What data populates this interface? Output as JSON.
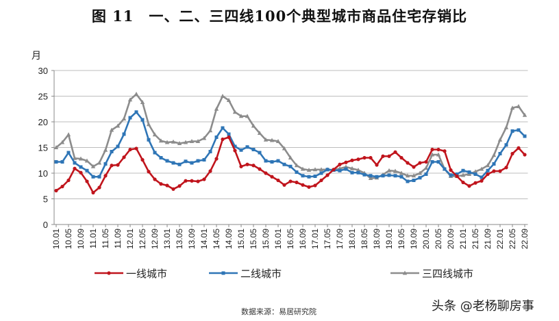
{
  "title": "图 11　一、二、三四线100个典型城市商品住宅存销比",
  "source": "数据来源：易居研究院",
  "watermark": "头条 @老杨聊房事",
  "chart_data": {
    "type": "line",
    "title": "图 11　一、二、三四线100个典型城市商品住宅存销比",
    "ylabel": "月",
    "ylim": [
      0,
      30
    ],
    "yticks": [
      0,
      5,
      10,
      15,
      20,
      25,
      30
    ],
    "grid": "horizontal",
    "legend": "bottom",
    "xtick_labels": [
      "10.01",
      "10.05",
      "10.09",
      "11.01",
      "11.05",
      "11.09",
      "12.01",
      "12.05",
      "12.09",
      "13.01",
      "13.05",
      "13.09",
      "14.01",
      "14.05",
      "14.09",
      "15.01",
      "15.05",
      "15.09",
      "16.01",
      "16.05",
      "16.09",
      "17.01",
      "17.05",
      "17.09",
      "18.01",
      "18.05",
      "18.09",
      "19.01",
      "19.05",
      "19.09",
      "20.01",
      "20.05",
      "20.09",
      "21.01",
      "21.05",
      "21.09",
      "22.01",
      "22.05",
      "22.09"
    ],
    "x": [
      "10.01",
      "10.03",
      "10.05",
      "10.07",
      "10.09",
      "10.11",
      "11.01",
      "11.03",
      "11.05",
      "11.07",
      "11.09",
      "11.11",
      "12.01",
      "12.03",
      "12.05",
      "12.07",
      "12.09",
      "12.11",
      "13.01",
      "13.03",
      "13.05",
      "13.07",
      "13.09",
      "13.11",
      "14.01",
      "14.03",
      "14.05",
      "14.07",
      "14.09",
      "14.11",
      "15.01",
      "15.03",
      "15.05",
      "15.07",
      "15.09",
      "15.11",
      "16.01",
      "16.03",
      "16.05",
      "16.07",
      "16.09",
      "16.11",
      "17.01",
      "17.03",
      "17.05",
      "17.07",
      "17.09",
      "17.11",
      "18.01",
      "18.03",
      "18.05",
      "18.07",
      "18.09",
      "18.11",
      "19.01",
      "19.03",
      "19.05",
      "19.07",
      "19.09",
      "19.11",
      "20.01",
      "20.03",
      "20.05",
      "20.07",
      "20.09",
      "20.11",
      "21.01",
      "21.03",
      "21.05",
      "21.07",
      "21.09",
      "21.11",
      "22.01",
      "22.03",
      "22.05",
      "22.07",
      "22.09"
    ],
    "series": [
      {
        "name": "一线城市",
        "color": "#c0141c",
        "marker": "circle",
        "values": [
          6.6,
          7.4,
          8.6,
          10.9,
          10.1,
          8.4,
          6.2,
          7.2,
          9.5,
          11.5,
          11.6,
          13.1,
          14.6,
          14.8,
          12.6,
          10.3,
          8.8,
          7.9,
          7.6,
          6.9,
          7.5,
          8.5,
          8.5,
          8.4,
          8.8,
          10.4,
          12.8,
          16.6,
          17.0,
          14.4,
          11.3,
          11.7,
          11.5,
          10.8,
          10.0,
          9.3,
          8.6,
          7.7,
          8.4,
          8.2,
          7.7,
          7.3,
          7.6,
          8.6,
          9.6,
          10.7,
          11.7,
          12.1,
          12.5,
          12.7,
          13.0,
          13.0,
          11.6,
          13.3,
          13.3,
          14.1,
          13.0,
          12.0,
          11.2,
          12.0,
          12.2,
          14.6,
          14.6,
          14.3,
          10.6,
          9.4,
          8.2,
          7.5,
          8.1,
          8.5,
          9.8,
          10.4,
          10.4,
          11.1,
          13.8,
          14.9,
          13.6
        ]
      },
      {
        "name": "二线城市",
        "color": "#2e75b6",
        "marker": "square",
        "values": [
          12.2,
          12.2,
          14.0,
          12.0,
          11.2,
          10.5,
          9.3,
          9.3,
          11.8,
          14.2,
          15.2,
          17.6,
          20.8,
          21.9,
          20.4,
          16.5,
          14.0,
          13.0,
          12.4,
          12.0,
          11.7,
          12.3,
          12.0,
          12.4,
          12.6,
          14.2,
          17.0,
          18.8,
          17.6,
          15.2,
          14.5,
          15.1,
          14.6,
          14.0,
          12.4,
          12.2,
          12.4,
          11.7,
          11.3,
          10.2,
          9.5,
          9.3,
          9.4,
          10.0,
          10.7,
          10.6,
          10.5,
          10.8,
          10.1,
          10.1,
          9.7,
          9.5,
          9.3,
          9.5,
          9.6,
          9.5,
          9.3,
          8.4,
          8.6,
          9.1,
          9.8,
          12.2,
          12.2,
          10.8,
          9.6,
          9.8,
          10.5,
          10.2,
          9.8,
          9.2,
          10.5,
          11.8,
          13.8,
          15.5,
          18.2,
          18.4,
          17.2
        ]
      },
      {
        "name": "三四线城市",
        "color": "#8c8c8c",
        "marker": "triangle",
        "values": [
          15.0,
          16.0,
          17.5,
          12.9,
          12.8,
          12.4,
          11.3,
          12.0,
          14.5,
          18.4,
          19.2,
          20.6,
          24.3,
          25.4,
          23.8,
          19.5,
          17.5,
          16.3,
          16.0,
          16.1,
          15.8,
          16.0,
          16.2,
          16.2,
          16.8,
          18.3,
          22.5,
          25.0,
          24.2,
          21.9,
          21.1,
          21.1,
          19.2,
          17.8,
          16.5,
          16.4,
          16.2,
          14.8,
          13.0,
          11.5,
          10.8,
          10.6,
          10.7,
          10.7,
          10.7,
          10.6,
          10.9,
          11.2,
          10.9,
          10.6,
          10.0,
          9.0,
          9.1,
          9.7,
          10.5,
          10.4,
          10.0,
          9.5,
          9.5,
          10.0,
          11.0,
          13.6,
          13.6,
          10.8,
          9.4,
          9.4,
          9.6,
          9.8,
          10.3,
          10.8,
          11.5,
          13.5,
          16.5,
          18.9,
          22.7,
          23.0,
          21.3
        ]
      }
    ]
  }
}
